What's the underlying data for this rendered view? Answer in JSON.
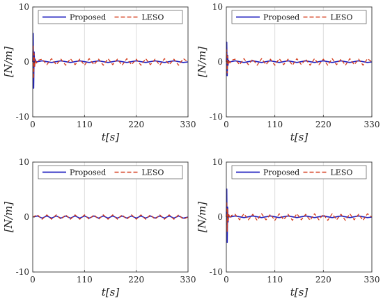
{
  "colors": {
    "proposed": "#1f1fbf",
    "leso": "#d43a1a",
    "grid": "#dcdcdc",
    "axis": "#333333"
  },
  "chart_data": [
    {
      "type": "line",
      "xlabel": "t[s]",
      "ylabel": "[N/m]",
      "xlim": [
        0,
        330
      ],
      "ylim": [
        -10,
        10
      ],
      "xticks": [
        "0",
        "110",
        "220",
        "330"
      ],
      "yticks": [
        "10",
        "0",
        "-10"
      ],
      "grid": "vertical",
      "legend": "top, horizontal",
      "series": [
        {
          "name": "Proposed",
          "x": [
            0,
            1,
            2,
            3,
            4,
            5,
            6,
            8,
            20,
            40,
            60,
            80,
            100,
            120,
            140,
            160,
            180,
            200,
            220,
            240,
            260,
            280,
            300,
            320,
            330
          ],
          "y": [
            0,
            5.2,
            -4.8,
            1.8,
            -0.8,
            0.5,
            0.2,
            0,
            0.2,
            -0.1,
            0.2,
            -0.1,
            0.2,
            -0.1,
            0.2,
            -0.1,
            0.2,
            -0.1,
            0.2,
            -0.1,
            0.2,
            -0.1,
            0.2,
            -0.1,
            0
          ]
        },
        {
          "name": "LESO",
          "x": [
            0,
            1,
            2,
            3,
            4,
            6,
            8,
            12,
            20,
            30,
            40,
            50,
            60,
            70,
            80,
            90,
            100,
            110,
            120,
            130,
            140,
            150,
            160,
            170,
            180,
            190,
            200,
            210,
            220,
            230,
            240,
            250,
            260,
            270,
            280,
            290,
            300,
            310,
            320,
            330
          ],
          "y": [
            0,
            3.0,
            -3.0,
            1.5,
            -0.8,
            0.4,
            -0.2,
            0.3,
            0.5,
            -0.5,
            0.6,
            -0.5,
            0.5,
            -0.6,
            0.6,
            -0.5,
            0.5,
            -0.6,
            0.6,
            -0.5,
            0.5,
            -0.6,
            0.6,
            -0.5,
            0.5,
            -0.6,
            0.6,
            -0.5,
            0.5,
            -0.6,
            0.6,
            -0.5,
            0.5,
            -0.6,
            0.6,
            -0.5,
            0.5,
            -0.6,
            0.6,
            0
          ]
        }
      ]
    },
    {
      "type": "line",
      "xlabel": "t[s]",
      "ylabel": "[N/m]",
      "xlim": [
        0,
        330
      ],
      "ylim": [
        -10,
        10
      ],
      "xticks": [
        "0",
        "110",
        "220",
        "330"
      ],
      "yticks": [
        "10",
        "0",
        "-10"
      ],
      "grid": "vertical",
      "legend": "top, horizontal",
      "series": [
        {
          "name": "Proposed",
          "x": [
            0,
            1,
            2,
            3,
            4,
            5,
            6,
            8,
            20,
            40,
            60,
            80,
            100,
            120,
            140,
            160,
            180,
            200,
            220,
            240,
            260,
            280,
            300,
            320,
            330
          ],
          "y": [
            0,
            3.6,
            -2.5,
            1.2,
            -0.6,
            0.3,
            0.1,
            0,
            0.2,
            -0.1,
            0.2,
            -0.1,
            0.2,
            -0.1,
            0.2,
            -0.1,
            0.2,
            -0.1,
            0.2,
            -0.1,
            0.2,
            -0.1,
            0.2,
            -0.1,
            0
          ]
        },
        {
          "name": "LESO",
          "x": [
            0,
            1,
            2,
            3,
            4,
            6,
            8,
            12,
            20,
            30,
            40,
            50,
            60,
            70,
            80,
            90,
            100,
            110,
            120,
            130,
            140,
            150,
            160,
            170,
            180,
            190,
            200,
            210,
            220,
            230,
            240,
            250,
            260,
            270,
            280,
            290,
            300,
            310,
            320,
            330
          ],
          "y": [
            0,
            2.2,
            -2.0,
            1.0,
            -0.6,
            0.3,
            -0.2,
            0.3,
            0.5,
            -0.5,
            0.6,
            -0.5,
            0.5,
            -0.6,
            0.6,
            -0.5,
            0.5,
            -0.6,
            0.6,
            -0.5,
            0.5,
            -0.6,
            0.6,
            -0.5,
            0.5,
            -0.6,
            0.6,
            -0.5,
            0.5,
            -0.6,
            0.6,
            -0.5,
            0.5,
            -0.6,
            0.6,
            -0.5,
            0.5,
            -0.6,
            0.6,
            0
          ]
        }
      ]
    },
    {
      "type": "line",
      "xlabel": "t[s]",
      "ylabel": "[N/m]",
      "xlim": [
        0,
        330
      ],
      "ylim": [
        -10,
        10
      ],
      "xticks": [
        "0",
        "110",
        "220",
        "330"
      ],
      "yticks": [
        "10",
        "0",
        "-10"
      ],
      "grid": "vertical",
      "legend": "top, horizontal",
      "series": [
        {
          "name": "Proposed",
          "x": [
            0,
            10,
            20,
            30,
            40,
            50,
            60,
            70,
            80,
            90,
            100,
            110,
            120,
            130,
            140,
            150,
            160,
            170,
            180,
            190,
            200,
            210,
            220,
            230,
            240,
            250,
            260,
            270,
            280,
            290,
            300,
            310,
            320,
            330
          ],
          "y": [
            0,
            0.2,
            -0.2,
            0.2,
            -0.2,
            0.2,
            -0.2,
            0.2,
            -0.2,
            0.2,
            -0.2,
            0.2,
            -0.2,
            0.2,
            -0.2,
            0.2,
            -0.2,
            0.2,
            -0.2,
            0.2,
            -0.2,
            0.2,
            -0.2,
            0.2,
            -0.2,
            0.2,
            -0.2,
            0.2,
            -0.2,
            0.2,
            -0.2,
            0.2,
            -0.2,
            0
          ]
        },
        {
          "name": "LESO",
          "x": [
            0,
            10,
            20,
            30,
            40,
            50,
            60,
            70,
            80,
            90,
            100,
            110,
            120,
            130,
            140,
            150,
            160,
            170,
            180,
            190,
            200,
            210,
            220,
            230,
            240,
            250,
            260,
            270,
            280,
            290,
            300,
            310,
            320,
            330
          ],
          "y": [
            0,
            0.4,
            -0.4,
            0.4,
            -0.4,
            0.4,
            -0.4,
            0.4,
            -0.4,
            0.4,
            -0.4,
            0.4,
            -0.4,
            0.4,
            -0.4,
            0.4,
            -0.4,
            0.4,
            -0.4,
            0.4,
            -0.4,
            0.4,
            -0.4,
            0.4,
            -0.4,
            0.4,
            -0.4,
            0.4,
            -0.4,
            0.4,
            -0.4,
            0.4,
            -0.4,
            0
          ]
        }
      ]
    },
    {
      "type": "line",
      "xlabel": "t[s]",
      "ylabel": "[N/m]",
      "xlim": [
        0,
        330
      ],
      "ylim": [
        -10,
        10
      ],
      "xticks": [
        "0",
        "110",
        "220",
        "330"
      ],
      "yticks": [
        "10",
        "0",
        "-10"
      ],
      "grid": "vertical",
      "legend": "top, horizontal",
      "series": [
        {
          "name": "Proposed",
          "x": [
            0,
            1,
            2,
            3,
            4,
            5,
            6,
            8,
            20,
            40,
            60,
            80,
            100,
            120,
            140,
            160,
            180,
            200,
            220,
            240,
            260,
            280,
            300,
            320,
            330
          ],
          "y": [
            0,
            5.1,
            -4.6,
            1.8,
            -0.9,
            0.4,
            0.2,
            0,
            0.2,
            -0.1,
            0.2,
            -0.1,
            0.2,
            -0.1,
            0.2,
            -0.1,
            0.2,
            -0.1,
            0.2,
            -0.1,
            0.2,
            -0.1,
            0.2,
            -0.1,
            0
          ]
        },
        {
          "name": "LESO",
          "x": [
            0,
            1,
            2,
            3,
            4,
            6,
            8,
            12,
            20,
            30,
            40,
            50,
            60,
            70,
            80,
            90,
            100,
            110,
            120,
            130,
            140,
            150,
            160,
            170,
            180,
            190,
            200,
            210,
            220,
            230,
            240,
            250,
            260,
            270,
            280,
            290,
            300,
            310,
            320,
            330
          ],
          "y": [
            0,
            2.8,
            -2.6,
            1.4,
            -0.7,
            0.4,
            -0.2,
            0.3,
            0.5,
            -0.5,
            0.6,
            -0.5,
            0.5,
            -0.6,
            0.6,
            -0.5,
            0.5,
            -0.6,
            0.6,
            -0.5,
            0.5,
            -0.6,
            0.6,
            -0.5,
            0.5,
            -0.6,
            0.6,
            -0.5,
            0.5,
            -0.6,
            0.6,
            -0.5,
            0.5,
            -0.6,
            0.6,
            -0.5,
            0.5,
            -0.6,
            0.6,
            0
          ]
        }
      ]
    }
  ]
}
